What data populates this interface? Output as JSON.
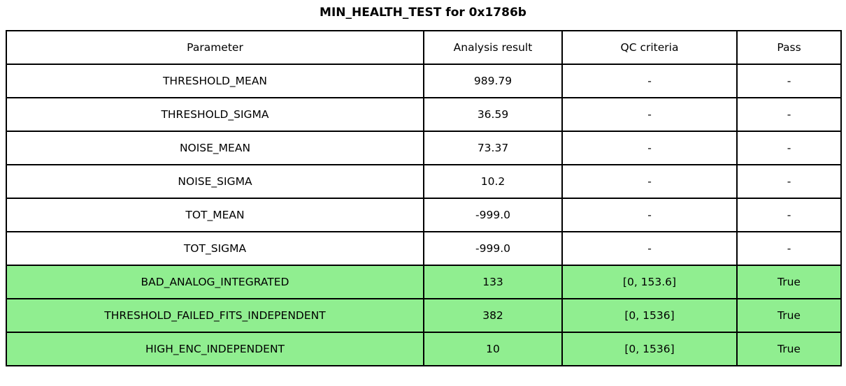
{
  "title": "MIN_HEALTH_TEST for 0x1786b",
  "colors": {
    "highlight_row_bg": "#90EE90",
    "normal_row_bg": "#FFFFFF",
    "border": "#000000",
    "text": "#000000"
  },
  "chart_data": {
    "type": "table",
    "title": "MIN_HEALTH_TEST for 0x1786b",
    "columns": [
      "Parameter",
      "Analysis result",
      "QC criteria",
      "Pass"
    ],
    "rows": [
      {
        "parameter": "THRESHOLD_MEAN",
        "analysis_result": "989.79",
        "qc_criteria": "-",
        "pass": "-",
        "highlight": false
      },
      {
        "parameter": "THRESHOLD_SIGMA",
        "analysis_result": "36.59",
        "qc_criteria": "-",
        "pass": "-",
        "highlight": false
      },
      {
        "parameter": "NOISE_MEAN",
        "analysis_result": "73.37",
        "qc_criteria": "-",
        "pass": "-",
        "highlight": false
      },
      {
        "parameter": "NOISE_SIGMA",
        "analysis_result": "10.2",
        "qc_criteria": "-",
        "pass": "-",
        "highlight": false
      },
      {
        "parameter": "TOT_MEAN",
        "analysis_result": "-999.0",
        "qc_criteria": "-",
        "pass": "-",
        "highlight": false
      },
      {
        "parameter": "TOT_SIGMA",
        "analysis_result": "-999.0",
        "qc_criteria": "-",
        "pass": "-",
        "highlight": false
      },
      {
        "parameter": "BAD_ANALOG_INTEGRATED",
        "analysis_result": "133",
        "qc_criteria": "[0, 153.6]",
        "pass": "True",
        "highlight": true
      },
      {
        "parameter": "THRESHOLD_FAILED_FITS_INDEPENDENT",
        "analysis_result": "382",
        "qc_criteria": "[0, 1536]",
        "pass": "True",
        "highlight": true
      },
      {
        "parameter": "HIGH_ENC_INDEPENDENT",
        "analysis_result": "10",
        "qc_criteria": "[0, 1536]",
        "pass": "True",
        "highlight": true
      }
    ],
    "layout": {
      "highlight_color": "#90EE90",
      "grid": true,
      "legend": "none"
    }
  }
}
